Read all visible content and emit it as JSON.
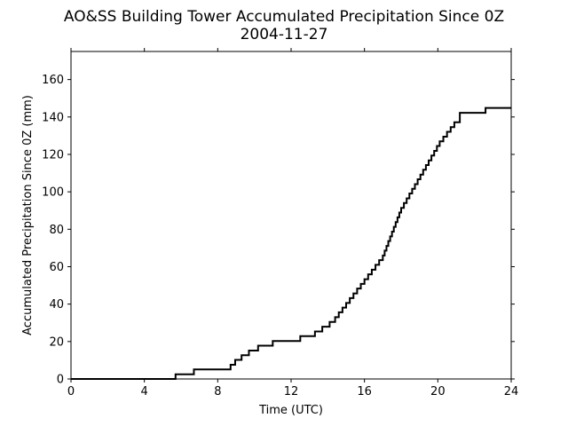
{
  "chart_data": {
    "type": "line",
    "title": "AO&SS Building Tower Accumulated Precipitation Since 0Z",
    "subtitle": "2004-11-27",
    "xlabel": "Time (UTC)",
    "ylabel": "Accumulated Precipitation Since 0Z (mm)",
    "xlim": [
      0,
      24
    ],
    "ylim": [
      0,
      175
    ],
    "xticks": [
      0,
      4,
      8,
      12,
      16,
      20,
      24
    ],
    "yticks": [
      0,
      20,
      40,
      60,
      80,
      100,
      120,
      140,
      160
    ],
    "grid": false,
    "step": true,
    "series": [
      {
        "color": "#000000",
        "x": [
          0,
          5.7,
          6.7,
          8.7,
          8.95,
          9.3,
          9.7,
          10.2,
          11.0,
          12.5,
          13.3,
          13.7,
          14.1,
          14.4,
          14.6,
          14.8,
          15.0,
          15.2,
          15.4,
          15.6,
          15.8,
          16.0,
          16.2,
          16.4,
          16.6,
          16.8,
          17.0,
          17.1,
          17.2,
          17.3,
          17.4,
          17.5,
          17.6,
          17.7,
          17.8,
          17.9,
          18.0,
          18.15,
          18.3,
          18.45,
          18.6,
          18.75,
          18.9,
          19.05,
          19.2,
          19.35,
          19.5,
          19.65,
          19.8,
          19.95,
          20.1,
          20.3,
          20.5,
          20.7,
          20.9,
          21.2,
          22.6,
          24
        ],
        "y": [
          0,
          2.5,
          5.1,
          7.6,
          10.2,
          12.7,
          15.2,
          17.8,
          20.3,
          22.9,
          25.4,
          27.9,
          30.5,
          33.0,
          35.6,
          38.1,
          40.6,
          43.2,
          45.7,
          48.3,
          50.8,
          53.3,
          55.9,
          58.4,
          61.0,
          63.5,
          66.0,
          68.6,
          71.1,
          73.7,
          76.2,
          78.7,
          81.3,
          83.8,
          86.4,
          88.9,
          91.4,
          94.0,
          96.5,
          99.1,
          101.6,
          104.1,
          106.7,
          109.2,
          111.8,
          114.3,
          116.8,
          119.4,
          121.9,
          124.5,
          127.0,
          129.5,
          132.1,
          134.6,
          137.2,
          142.2,
          144.8,
          144.8
        ]
      }
    ]
  }
}
